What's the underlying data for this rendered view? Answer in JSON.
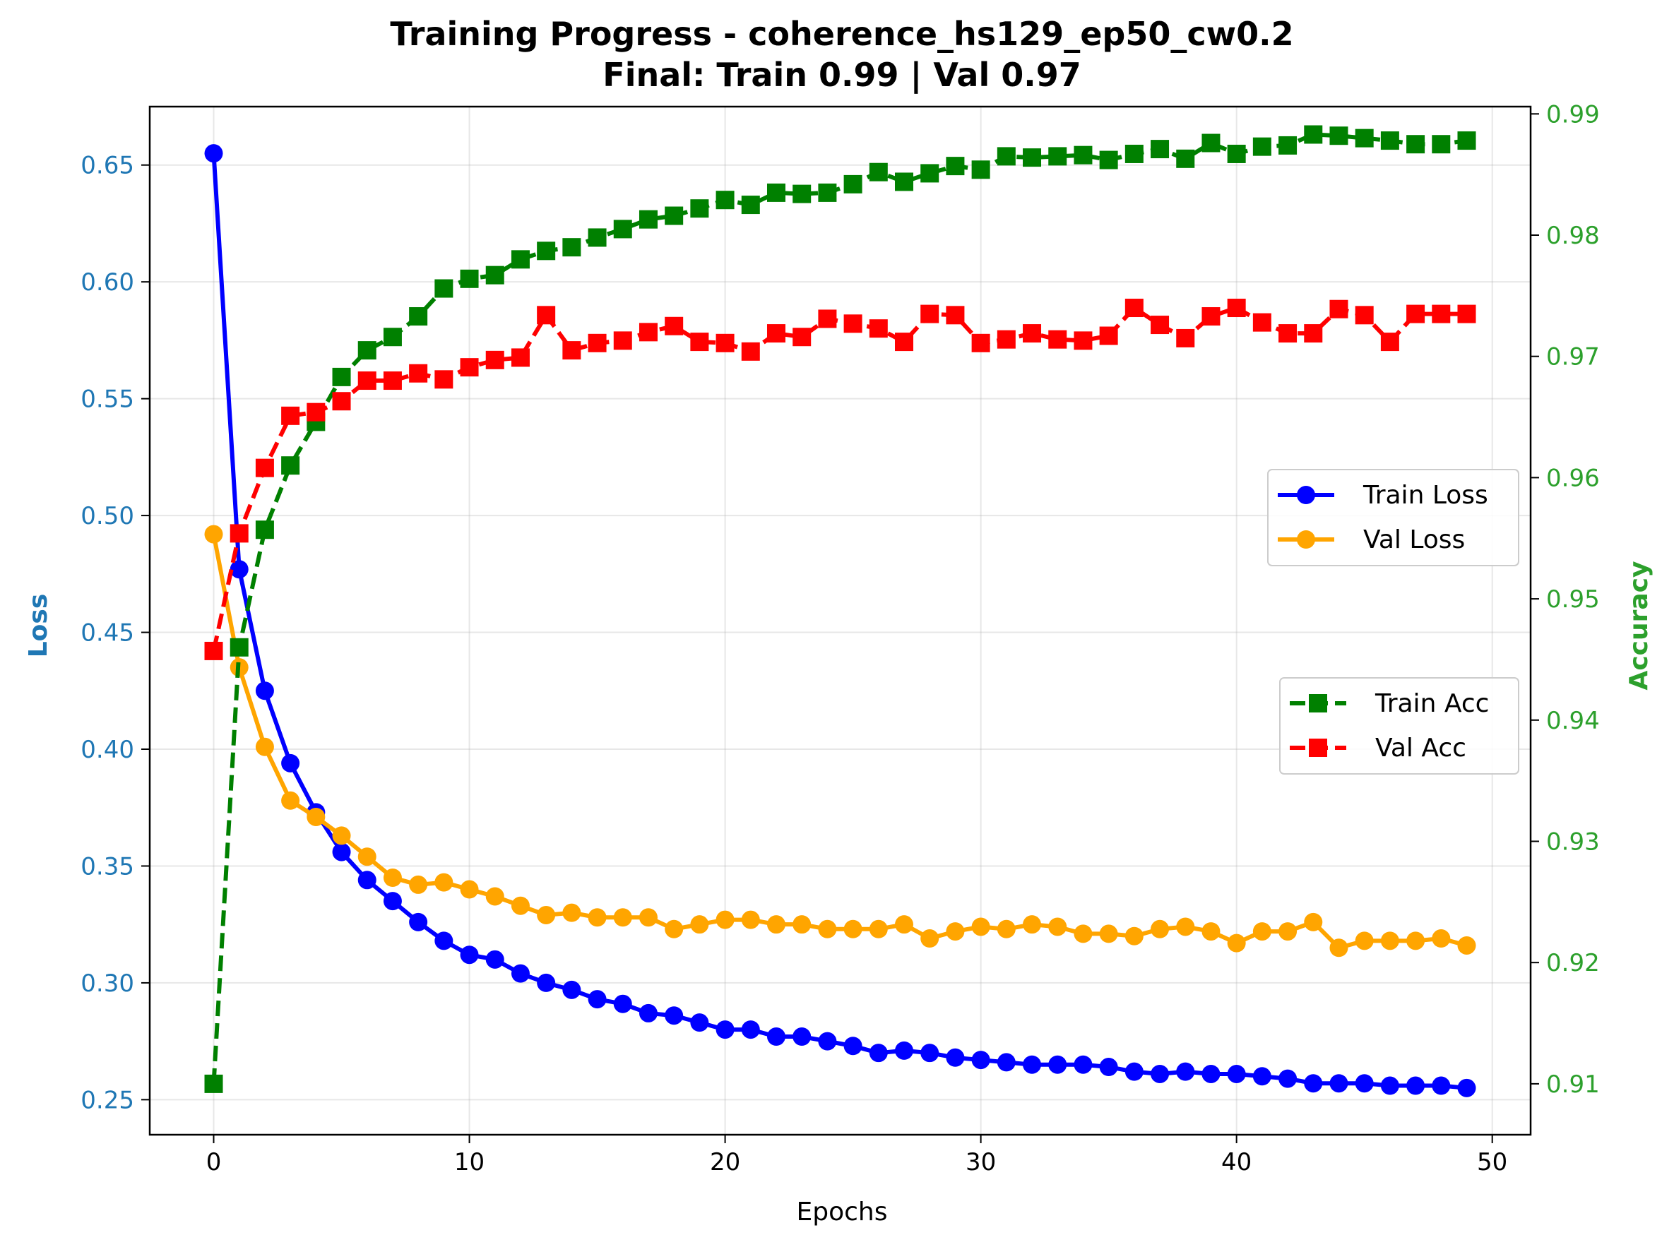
{
  "chart_data": {
    "type": "line",
    "title": "Training Progress - coherence_hs129_ep50_cw0.2",
    "subtitle": "Final: Train 0.99 | Val 0.97",
    "xlabel": "Epochs",
    "ylabel_left": "Loss",
    "ylabel_right": "Accuracy",
    "xlim": [
      -2.5,
      51.5
    ],
    "ylim_left": [
      0.235,
      0.675
    ],
    "ylim_right": [
      0.9058,
      0.9906
    ],
    "xticks": [
      0,
      10,
      20,
      30,
      40,
      50
    ],
    "xtick_labels": [
      "0",
      "10",
      "20",
      "30",
      "40",
      "50"
    ],
    "yticks_left": [
      0.25,
      0.3,
      0.35,
      0.4,
      0.45,
      0.5,
      0.55,
      0.6,
      0.65
    ],
    "ytick_labels_left": [
      "0.25",
      "0.30",
      "0.35",
      "0.40",
      "0.45",
      "0.50",
      "0.55",
      "0.60",
      "0.65"
    ],
    "yticks_right": [
      0.91,
      0.92,
      0.93,
      0.94,
      0.95,
      0.96,
      0.97,
      0.98,
      0.99
    ],
    "ytick_labels_right": [
      "0.91",
      "0.92",
      "0.93",
      "0.94",
      "0.95",
      "0.96",
      "0.97",
      "0.98",
      "0.99"
    ],
    "grid": true,
    "colors": {
      "left_axis": "#1f77b4",
      "right_axis": "#2ca02c",
      "train_loss": "#0000ff",
      "val_loss": "#ffa500",
      "train_acc": "#008000",
      "val_acc": "#ff0000"
    },
    "x": [
      0,
      1,
      2,
      3,
      4,
      5,
      6,
      7,
      8,
      9,
      10,
      11,
      12,
      13,
      14,
      15,
      16,
      17,
      18,
      19,
      20,
      21,
      22,
      23,
      24,
      25,
      26,
      27,
      28,
      29,
      30,
      31,
      32,
      33,
      34,
      35,
      36,
      37,
      38,
      39,
      40,
      41,
      42,
      43,
      44,
      45,
      46,
      47,
      48,
      49
    ],
    "series": [
      {
        "name": "Train Loss",
        "axis": "left",
        "color_key": "train_loss",
        "marker": "circle",
        "dash": "solid",
        "values": [
          0.655,
          0.477,
          0.425,
          0.394,
          0.373,
          0.356,
          0.344,
          0.335,
          0.326,
          0.318,
          0.312,
          0.31,
          0.304,
          0.3,
          0.297,
          0.293,
          0.291,
          0.287,
          0.286,
          0.283,
          0.28,
          0.28,
          0.277,
          0.277,
          0.275,
          0.273,
          0.27,
          0.271,
          0.27,
          0.268,
          0.267,
          0.266,
          0.265,
          0.265,
          0.265,
          0.264,
          0.262,
          0.261,
          0.262,
          0.261,
          0.261,
          0.26,
          0.259,
          0.257,
          0.257,
          0.257,
          0.256,
          0.256,
          0.256,
          0.255
        ]
      },
      {
        "name": "Val Loss",
        "axis": "left",
        "color_key": "val_loss",
        "marker": "circle",
        "dash": "solid",
        "values": [
          0.492,
          0.435,
          0.401,
          0.378,
          0.371,
          0.363,
          0.354,
          0.345,
          0.342,
          0.343,
          0.34,
          0.337,
          0.333,
          0.329,
          0.33,
          0.328,
          0.328,
          0.328,
          0.323,
          0.325,
          0.327,
          0.327,
          0.325,
          0.325,
          0.323,
          0.323,
          0.323,
          0.325,
          0.319,
          0.322,
          0.324,
          0.323,
          0.325,
          0.324,
          0.321,
          0.321,
          0.32,
          0.323,
          0.324,
          0.322,
          0.317,
          0.322,
          0.322,
          0.326,
          0.315,
          0.318,
          0.318,
          0.318,
          0.319,
          0.316
        ]
      },
      {
        "name": "Train Acc",
        "axis": "right",
        "color_key": "train_acc",
        "marker": "square",
        "dash": "dashed",
        "values": [
          0.91,
          0.946,
          0.9557,
          0.961,
          0.9646,
          0.9683,
          0.9705,
          0.9716,
          0.9733,
          0.9756,
          0.9764,
          0.9767,
          0.978,
          0.9787,
          0.979,
          0.9798,
          0.9805,
          0.9813,
          0.9816,
          0.9822,
          0.9829,
          0.9825,
          0.9835,
          0.9834,
          0.9835,
          0.9842,
          0.9852,
          0.9844,
          0.9851,
          0.9857,
          0.9854,
          0.9865,
          0.9864,
          0.9865,
          0.9866,
          0.9862,
          0.9867,
          0.9871,
          0.9863,
          0.9876,
          0.9867,
          0.9873,
          0.9874,
          0.9883,
          0.9882,
          0.988,
          0.9878,
          0.9875,
          0.9875,
          0.9878
        ]
      },
      {
        "name": "Val Acc",
        "axis": "right",
        "color_key": "val_acc",
        "marker": "square",
        "dash": "dashed",
        "values": [
          0.9457,
          0.9554,
          0.9608,
          0.9651,
          0.9654,
          0.9663,
          0.968,
          0.968,
          0.9686,
          0.9681,
          0.9691,
          0.9697,
          0.9699,
          0.9734,
          0.9705,
          0.9711,
          0.9713,
          0.972,
          0.9725,
          0.9712,
          0.9711,
          0.9704,
          0.9719,
          0.9716,
          0.9731,
          0.9727,
          0.9723,
          0.9712,
          0.9735,
          0.9734,
          0.9711,
          0.9714,
          0.9719,
          0.9714,
          0.9713,
          0.9717,
          0.974,
          0.9726,
          0.9715,
          0.9733,
          0.974,
          0.9728,
          0.9719,
          0.9719,
          0.9739,
          0.9734,
          0.9712,
          0.9735,
          0.9735,
          0.9735
        ]
      }
    ],
    "legends": [
      {
        "placement": "center-right-upper",
        "entries": [
          "Train Loss",
          "Val Loss"
        ]
      },
      {
        "placement": "center-right-lower",
        "entries": [
          "Train Acc",
          "Val Acc"
        ]
      }
    ]
  }
}
